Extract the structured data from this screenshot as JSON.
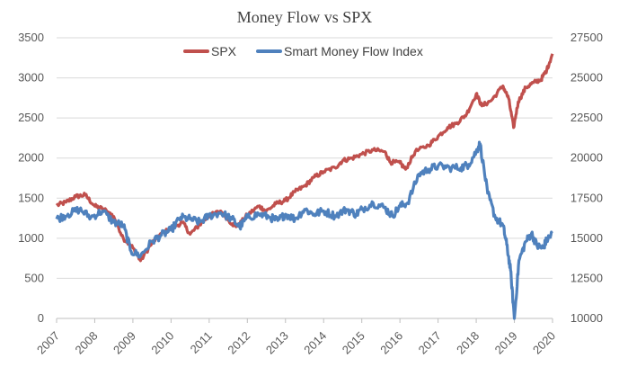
{
  "chart_data": {
    "type": "line",
    "title": "Money Flow vs SPX",
    "legend_position": "top-center",
    "grid": true,
    "x": {
      "ticks": [
        "2007",
        "2008",
        "2009",
        "2010",
        "2011",
        "2012",
        "2013",
        "2014",
        "2015",
        "2016",
        "2017",
        "2018",
        "2019",
        "2020"
      ],
      "range": [
        2007,
        2020
      ]
    },
    "y_left": {
      "ticks": [
        "0",
        "500",
        "1000",
        "1500",
        "2000",
        "2500",
        "3000",
        "3500"
      ],
      "range": [
        0,
        3500
      ]
    },
    "y_right": {
      "ticks": [
        "10000",
        "12500",
        "15000",
        "17500",
        "20000",
        "22500",
        "25000",
        "27500"
      ],
      "range": [
        10000,
        27500
      ]
    },
    "series": [
      {
        "name": "SPX",
        "axis": "left",
        "color": "#C0504D",
        "points": [
          [
            2007.0,
            1410
          ],
          [
            2007.25,
            1450
          ],
          [
            2007.5,
            1520
          ],
          [
            2007.75,
            1540
          ],
          [
            2008.0,
            1400
          ],
          [
            2008.25,
            1360
          ],
          [
            2008.5,
            1270
          ],
          [
            2008.75,
            1000
          ],
          [
            2009.0,
            880
          ],
          [
            2009.2,
            720
          ],
          [
            2009.5,
            940
          ],
          [
            2009.75,
            1060
          ],
          [
            2010.0,
            1120
          ],
          [
            2010.3,
            1200
          ],
          [
            2010.5,
            1050
          ],
          [
            2010.75,
            1170
          ],
          [
            2011.0,
            1280
          ],
          [
            2011.3,
            1340
          ],
          [
            2011.6,
            1180
          ],
          [
            2011.75,
            1150
          ],
          [
            2012.0,
            1290
          ],
          [
            2012.3,
            1400
          ],
          [
            2012.5,
            1340
          ],
          [
            2012.75,
            1430
          ],
          [
            2013.0,
            1470
          ],
          [
            2013.25,
            1580
          ],
          [
            2013.5,
            1650
          ],
          [
            2013.75,
            1760
          ],
          [
            2014.0,
            1830
          ],
          [
            2014.3,
            1880
          ],
          [
            2014.5,
            1970
          ],
          [
            2014.75,
            2000
          ],
          [
            2015.0,
            2050
          ],
          [
            2015.3,
            2100
          ],
          [
            2015.6,
            2080
          ],
          [
            2015.75,
            1950
          ],
          [
            2016.0,
            1940
          ],
          [
            2016.15,
            1860
          ],
          [
            2016.4,
            2080
          ],
          [
            2016.75,
            2160
          ],
          [
            2017.0,
            2270
          ],
          [
            2017.25,
            2380
          ],
          [
            2017.5,
            2440
          ],
          [
            2017.75,
            2550
          ],
          [
            2018.0,
            2800
          ],
          [
            2018.15,
            2650
          ],
          [
            2018.4,
            2720
          ],
          [
            2018.7,
            2900
          ],
          [
            2018.85,
            2740
          ],
          [
            2018.98,
            2380
          ],
          [
            2019.1,
            2700
          ],
          [
            2019.3,
            2880
          ],
          [
            2019.5,
            2940
          ],
          [
            2019.7,
            2980
          ],
          [
            2019.85,
            3100
          ],
          [
            2020.0,
            3300
          ]
        ]
      },
      {
        "name": "Smart Money Flow Index",
        "axis": "right",
        "color": "#4F81BD",
        "points": [
          [
            2007.0,
            16200
          ],
          [
            2007.3,
            16500
          ],
          [
            2007.6,
            16800
          ],
          [
            2007.9,
            16300
          ],
          [
            2008.2,
            16700
          ],
          [
            2008.5,
            16000
          ],
          [
            2008.75,
            15800
          ],
          [
            2008.95,
            14200
          ],
          [
            2009.2,
            13900
          ],
          [
            2009.5,
            14800
          ],
          [
            2009.75,
            15200
          ],
          [
            2010.0,
            15500
          ],
          [
            2010.25,
            16300
          ],
          [
            2010.5,
            16200
          ],
          [
            2010.75,
            16000
          ],
          [
            2011.0,
            16400
          ],
          [
            2011.3,
            16600
          ],
          [
            2011.6,
            16200
          ],
          [
            2011.8,
            15700
          ],
          [
            2012.0,
            16300
          ],
          [
            2012.3,
            16500
          ],
          [
            2012.6,
            16300
          ],
          [
            2012.8,
            16100
          ],
          [
            2013.0,
            16500
          ],
          [
            2013.25,
            16200
          ],
          [
            2013.5,
            16800
          ],
          [
            2013.75,
            16500
          ],
          [
            2014.0,
            16700
          ],
          [
            2014.3,
            16400
          ],
          [
            2014.6,
            16800
          ],
          [
            2014.85,
            16500
          ],
          [
            2015.0,
            16800
          ],
          [
            2015.3,
            17200
          ],
          [
            2015.6,
            16900
          ],
          [
            2015.8,
            16400
          ],
          [
            2016.0,
            17000
          ],
          [
            2016.2,
            17200
          ],
          [
            2016.5,
            19000
          ],
          [
            2016.75,
            19300
          ],
          [
            2017.0,
            19500
          ],
          [
            2017.3,
            19400
          ],
          [
            2017.6,
            19400
          ],
          [
            2017.8,
            19600
          ],
          [
            2018.0,
            20400
          ],
          [
            2018.1,
            20900
          ],
          [
            2018.3,
            17800
          ],
          [
            2018.5,
            16300
          ],
          [
            2018.7,
            15800
          ],
          [
            2018.8,
            14600
          ],
          [
            2018.9,
            13000
          ],
          [
            2019.0,
            10000
          ],
          [
            2019.12,
            13600
          ],
          [
            2019.3,
            14800
          ],
          [
            2019.45,
            15300
          ],
          [
            2019.6,
            14500
          ],
          [
            2019.75,
            14400
          ],
          [
            2019.85,
            14900
          ],
          [
            2020.0,
            15300
          ]
        ]
      }
    ]
  }
}
